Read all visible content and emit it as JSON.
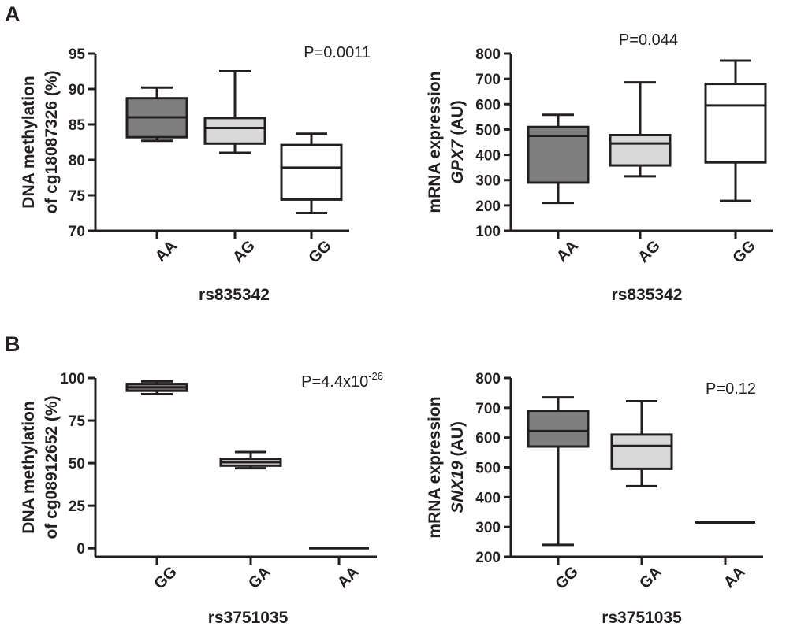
{
  "panels": [
    {
      "label": "A"
    },
    {
      "label": "B"
    }
  ],
  "chart_data": [
    {
      "type": "box",
      "panel": "A",
      "ylabel_lines": [
        "DNA methylation",
        "of cg18087326 (%)"
      ],
      "xlabel": "rs835342",
      "categories": [
        "AA",
        "AG",
        "GG"
      ],
      "ylim": [
        70,
        95
      ],
      "yticks": [
        70,
        75,
        80,
        85,
        90,
        95
      ],
      "pvalue": {
        "base": "P=0.0011",
        "exp": ""
      },
      "boxes": [
        {
          "category": "AA",
          "whisker_low": 82.7,
          "q1": 83.2,
          "median": 86.0,
          "q3": 88.7,
          "whisker_high": 90.2,
          "fill": "#7f7f7f"
        },
        {
          "category": "AG",
          "whisker_low": 81.0,
          "q1": 82.3,
          "median": 84.5,
          "q3": 85.9,
          "whisker_high": 92.5,
          "fill": "#d9d9d9"
        },
        {
          "category": "GG",
          "whisker_low": 72.5,
          "q1": 74.4,
          "median": 78.9,
          "q3": 82.1,
          "whisker_high": 83.7,
          "fill": "#ffffff"
        }
      ]
    },
    {
      "type": "box",
      "panel": "A",
      "ylabel_lines": [
        "mRNA expression",
        "GPX7 (AU)"
      ],
      "ylabel_italic_part": "GPX7",
      "xlabel": "rs835342",
      "categories": [
        "AA",
        "AG",
        "GG"
      ],
      "ylim": [
        100,
        800
      ],
      "yticks": [
        100,
        200,
        300,
        400,
        500,
        600,
        700,
        800
      ],
      "pvalue": {
        "base": "P=0.044",
        "exp": ""
      },
      "boxes": [
        {
          "category": "AA",
          "whisker_low": 210,
          "q1": 290,
          "median": 475,
          "q3": 510,
          "whisker_high": 558,
          "fill": "#7f7f7f"
        },
        {
          "category": "AG",
          "whisker_low": 315,
          "q1": 358,
          "median": 445,
          "q3": 478,
          "whisker_high": 686,
          "fill": "#d9d9d9"
        },
        {
          "category": "GG",
          "whisker_low": 218,
          "q1": 370,
          "median": 595,
          "q3": 680,
          "whisker_high": 772,
          "fill": "#ffffff"
        }
      ]
    },
    {
      "type": "box",
      "panel": "B",
      "ylabel_lines": [
        "DNA methylation",
        "of cg08912652 (%)"
      ],
      "xlabel": "rs3751035",
      "categories": [
        "GG",
        "GA",
        "AA"
      ],
      "ylim": [
        -5,
        100
      ],
      "yticks": [
        0,
        25,
        50,
        75,
        100
      ],
      "pvalue": {
        "base": "P=4.4x10",
        "exp": "-26"
      },
      "boxes": [
        {
          "category": "GG",
          "whisker_low": 90.5,
          "q1": 92.5,
          "median": 94.5,
          "q3": 96.5,
          "whisker_high": 98.0,
          "fill": "#7f7f7f"
        },
        {
          "category": "GA",
          "whisker_low": 47.0,
          "q1": 48.5,
          "median": 50.5,
          "q3": 52.5,
          "whisker_high": 56.5,
          "fill": "#d9d9d9"
        },
        {
          "category": "AA",
          "whisker_low": 0,
          "q1": 0,
          "median": 0,
          "q3": 0,
          "whisker_high": 0,
          "fill": "#ffffff"
        }
      ]
    },
    {
      "type": "box",
      "panel": "B",
      "ylabel_lines": [
        "mRNA expression",
        "SNX19 (AU)"
      ],
      "ylabel_italic_part": "SNX19",
      "xlabel": "rs3751035",
      "categories": [
        "GG",
        "GA",
        "AA"
      ],
      "ylim": [
        200,
        800
      ],
      "yticks": [
        200,
        300,
        400,
        500,
        600,
        700,
        800
      ],
      "pvalue": {
        "base": "P=0.12",
        "exp": ""
      },
      "boxes": [
        {
          "category": "GG",
          "whisker_low": 240,
          "q1": 570,
          "median": 622,
          "q3": 690,
          "whisker_high": 735,
          "fill": "#7f7f7f"
        },
        {
          "category": "GA",
          "whisker_low": 437,
          "q1": 495,
          "median": 572,
          "q3": 610,
          "whisker_high": 722,
          "fill": "#d9d9d9"
        },
        {
          "category": "AA",
          "whisker_low": 315,
          "q1": 315,
          "median": 315,
          "q3": 315,
          "whisker_high": 315,
          "fill": "#ffffff"
        }
      ]
    }
  ]
}
